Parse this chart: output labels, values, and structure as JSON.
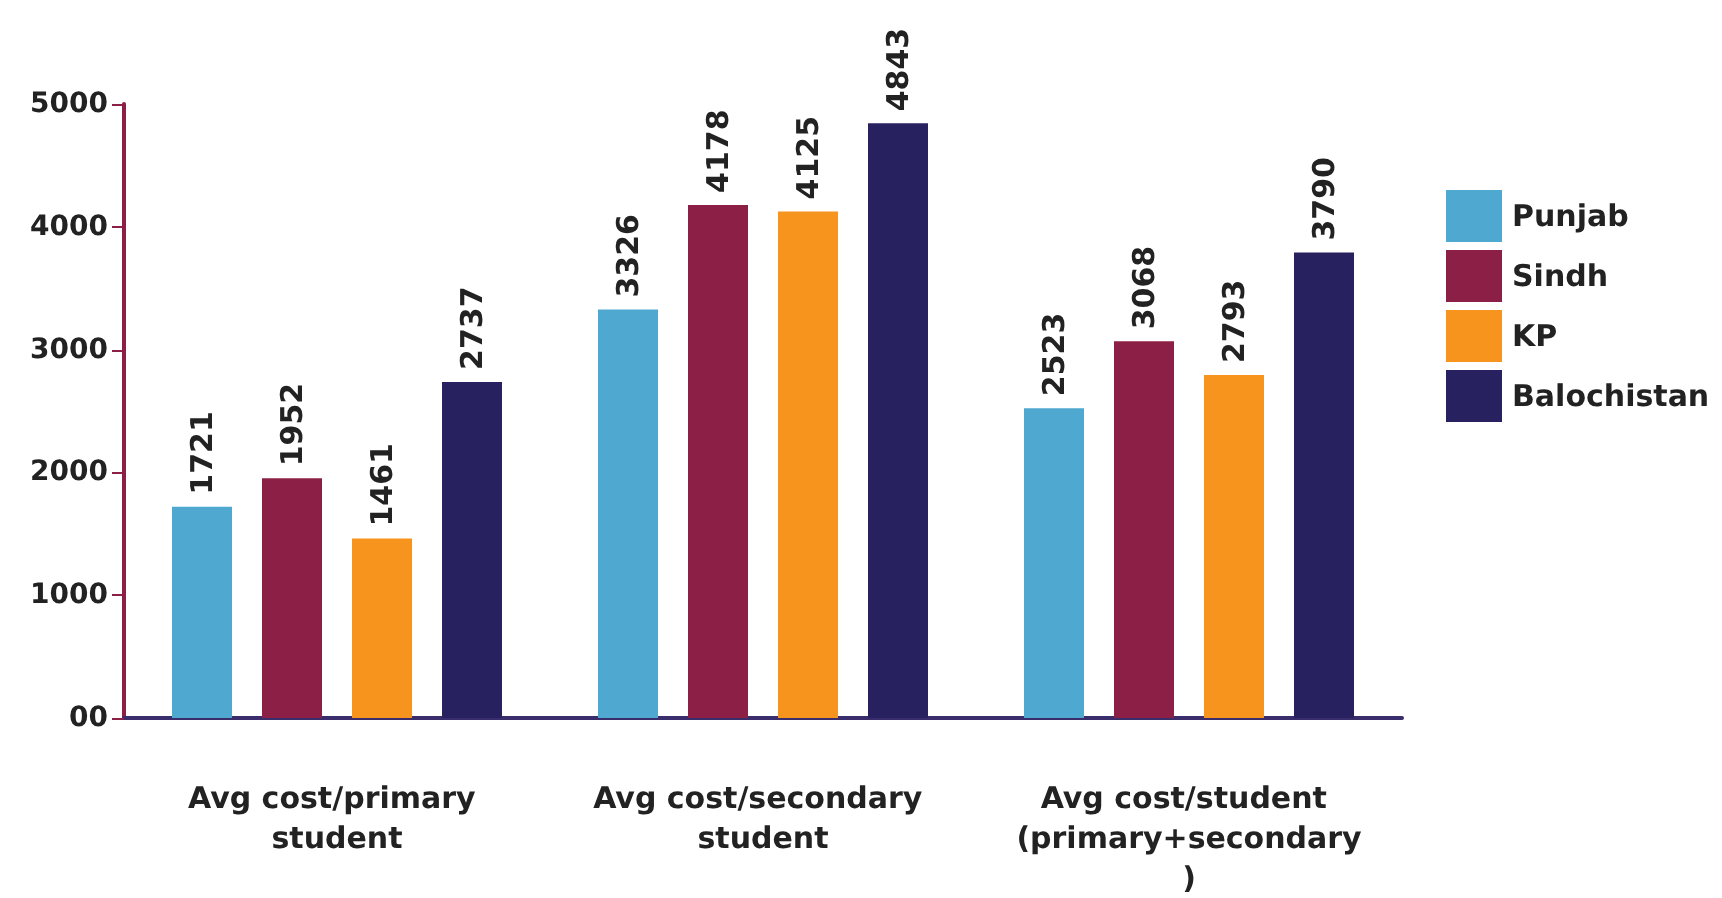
{
  "chart_data": {
    "type": "bar",
    "categories": [
      "Avg cost/primary student",
      "Avg cost/secondary student",
      "Avg cost/student (primary+secondary)"
    ],
    "series": [
      {
        "name": "Punjab",
        "color": "#4fa8cf",
        "values": [
          1721,
          3326,
          2523
        ]
      },
      {
        "name": "Sindh",
        "color": "#8c1f45",
        "values": [
          1952,
          4178,
          3068
        ]
      },
      {
        "name": "KP",
        "color": "#f7941d",
        "values": [
          1461,
          4125,
          2793
        ]
      },
      {
        "name": "Balochistan",
        "color": "#27215f",
        "values": [
          2737,
          4843,
          3790
        ]
      }
    ],
    "ylim": [
      0,
      5000
    ],
    "yticks": [
      {
        "value": 0,
        "label": "00"
      },
      1000,
      2000,
      3000,
      4000,
      5000
    ],
    "data_labels": true,
    "legend": "right",
    "grid": false
  }
}
